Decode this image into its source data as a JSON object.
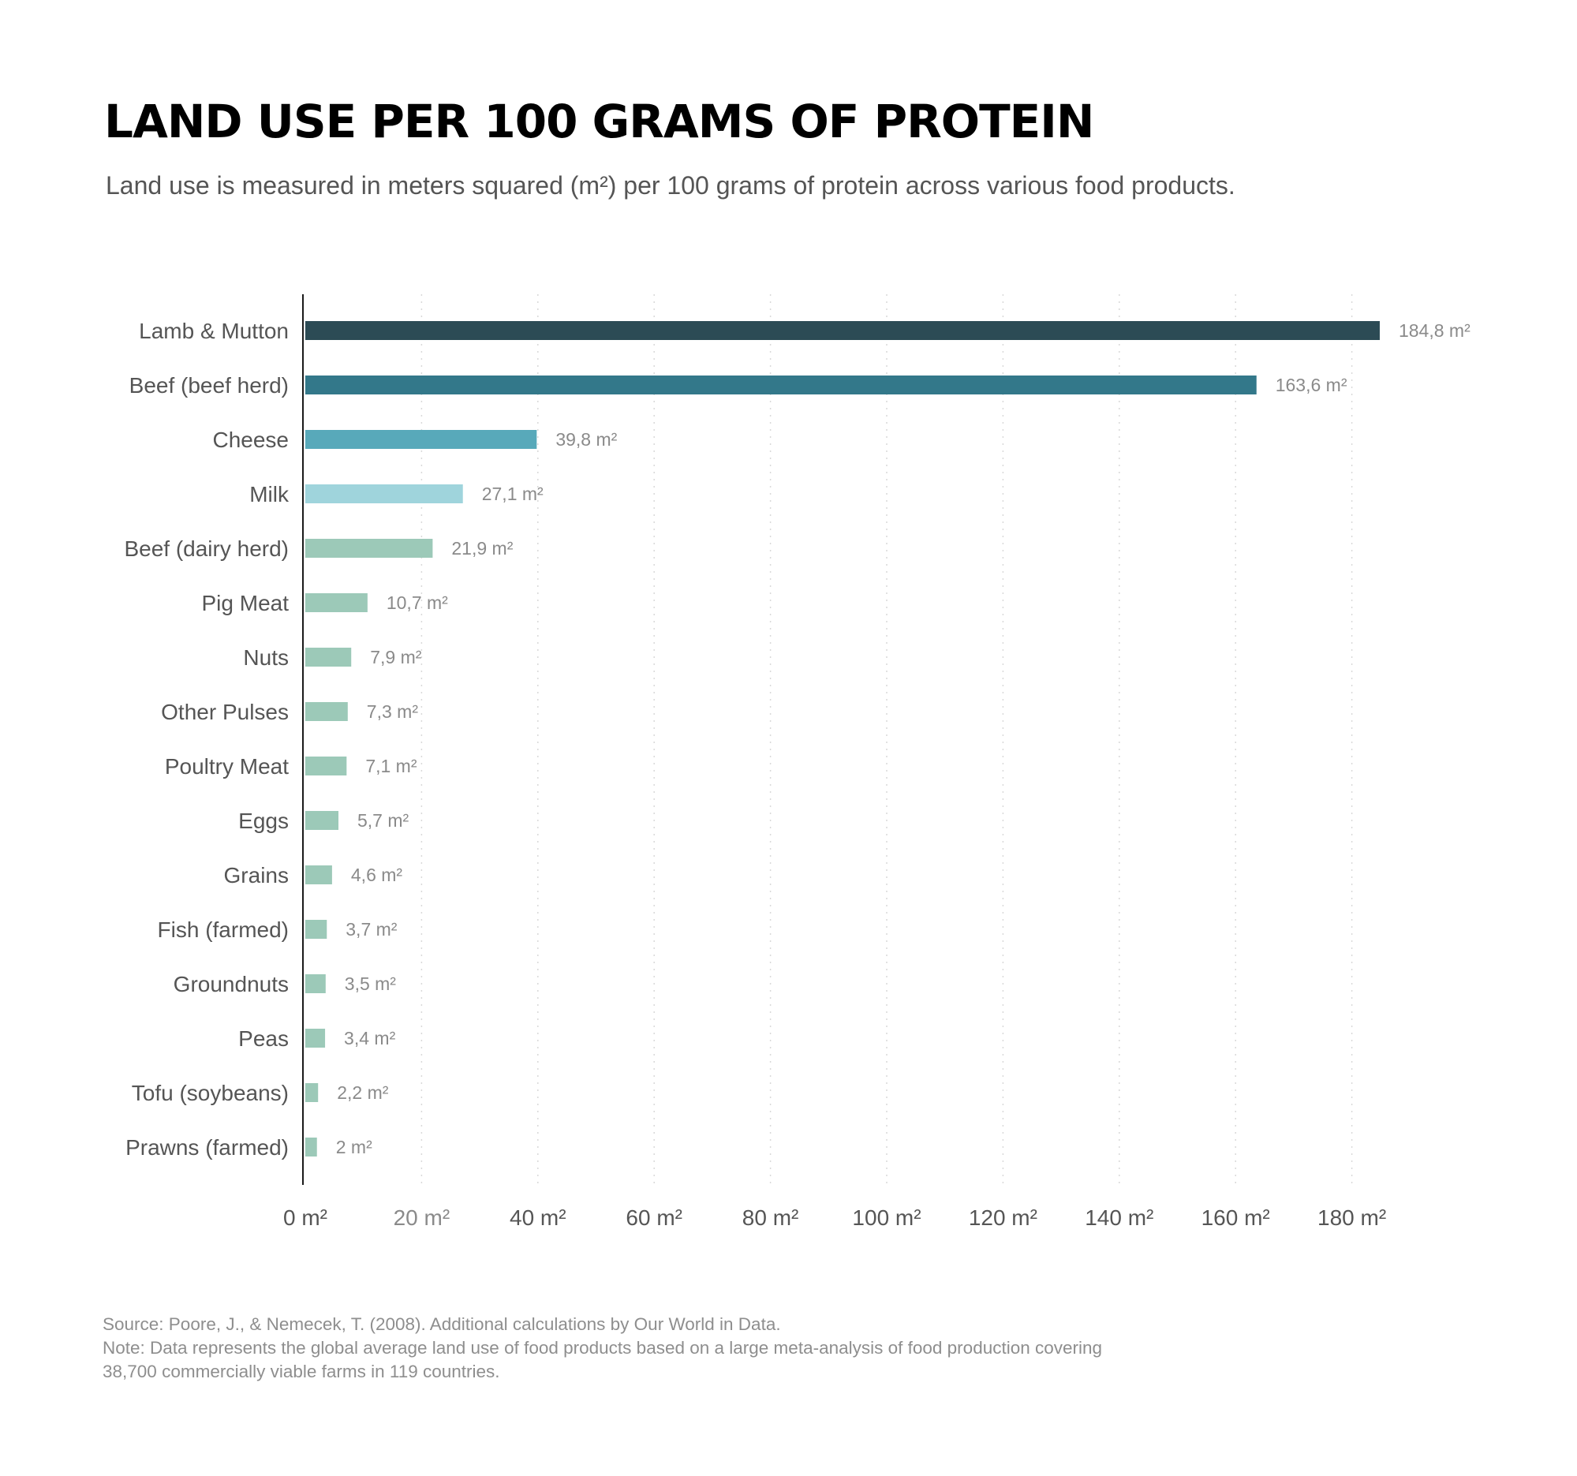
{
  "chart_data": {
    "type": "bar",
    "orientation": "horizontal",
    "title": "LAND USE PER 100 GRAMS OF PROTEIN",
    "subtitle": "Land use is measured in meters squared (m²) per 100 grams of protein across various food products.",
    "categories": [
      "Lamb & Mutton",
      "Beef (beef herd)",
      "Cheese",
      "Milk",
      "Beef (dairy herd)",
      "Pig Meat",
      "Nuts",
      "Other Pulses",
      "Poultry Meat",
      "Eggs",
      "Grains",
      "Fish (farmed)",
      "Groundnuts",
      "Peas",
      "Tofu (soybeans)",
      "Prawns (farmed)"
    ],
    "values": [
      184.8,
      163.6,
      39.8,
      27.1,
      21.9,
      10.7,
      7.9,
      7.3,
      7.1,
      5.7,
      4.6,
      3.7,
      3.5,
      3.4,
      2.2,
      2
    ],
    "value_labels": [
      "184,8 m²",
      "163,6 m²",
      "39,8 m²",
      "27,1 m²",
      "21,9 m²",
      "10,7 m²",
      "7,9 m²",
      "7,3 m²",
      "7,1 m²",
      "5,7 m²",
      "4,6 m²",
      "3,7 m²",
      "3,5 m²",
      "3,4 m²",
      "2,2 m²",
      "2 m²"
    ],
    "colors": [
      "#2c4b55",
      "#33788a",
      "#58a9ba",
      "#9fd4dc",
      "#9cc9b8",
      "#9cc9b8",
      "#9cc9b8",
      "#9cc9b8",
      "#9cc9b8",
      "#9cc9b8",
      "#9cc9b8",
      "#9cc9b8",
      "#9cc9b8",
      "#9cc9b8",
      "#9cc9b8",
      "#9cc9b8"
    ],
    "x_ticks": [
      0,
      20,
      40,
      60,
      80,
      100,
      120,
      140,
      160,
      180
    ],
    "x_tick_labels": [
      "0 m²",
      "20 m²",
      "40 m²",
      "60 m²",
      "80 m²",
      "100 m²",
      "120 m²",
      "140 m²",
      "160 m²",
      "180 m²"
    ],
    "xlim": [
      0,
      184.8
    ],
    "grid": "vertical dotted",
    "legend": "none"
  },
  "footer": {
    "source": "Source: Poore, J., & Nemecek, T. (2008). Additional calculations by Our World in Data.",
    "note_line1": "Note: Data represents the global average land use of food products based on a large meta-analysis of food production covering",
    "note_line2": "38,700 commercially viable farms in 119 countries."
  }
}
